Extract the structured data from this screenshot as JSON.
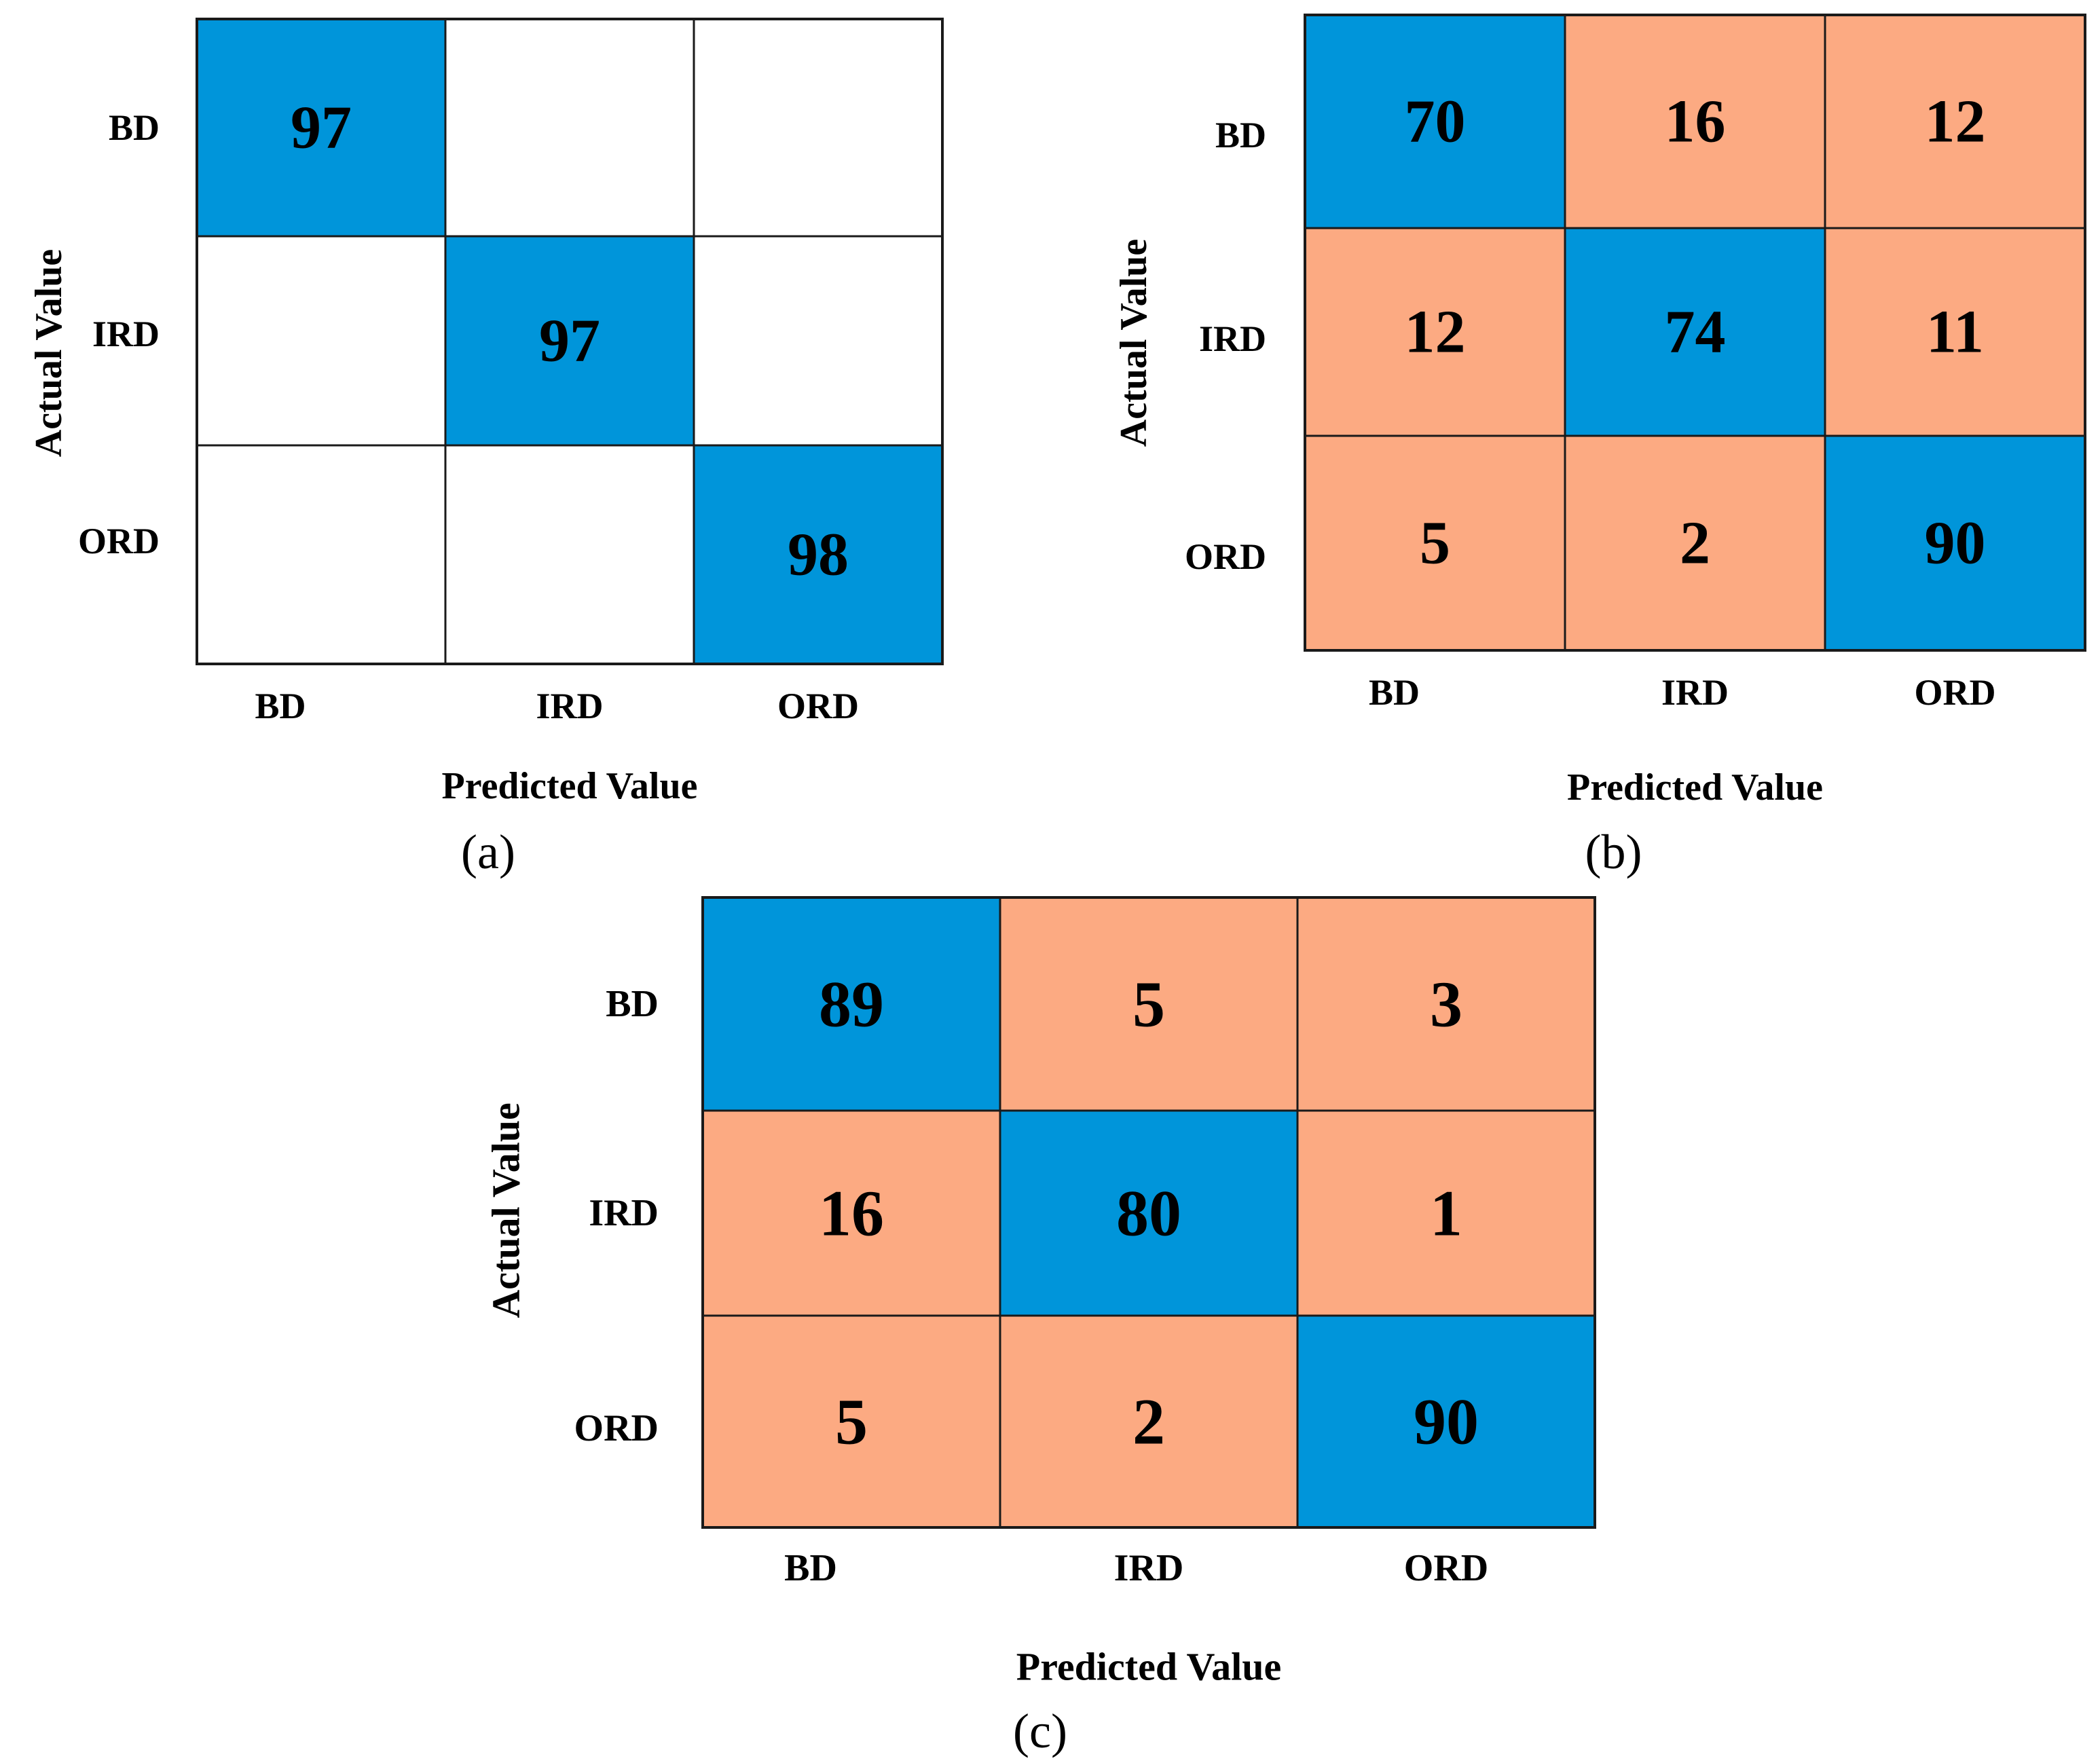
{
  "colors": {
    "correct": "#0095DA",
    "error": "#FCAA82",
    "empty": "#FFFFFF",
    "grid": "#1A1A1A"
  },
  "chart_data": [
    {
      "type": "heatmap",
      "panel_label": "(a)",
      "title": "",
      "xlabel": "Predicted Value",
      "ylabel": "Actual Value",
      "x_categories": [
        "BD",
        "IRD",
        "ORD"
      ],
      "y_categories": [
        "BD",
        "IRD",
        "ORD"
      ],
      "values": [
        [
          97,
          null,
          null
        ],
        [
          null,
          97,
          null
        ],
        [
          null,
          null,
          98
        ]
      ]
    },
    {
      "type": "heatmap",
      "panel_label": "(b)",
      "title": "",
      "xlabel": "Predicted Value",
      "ylabel": "Actual Value",
      "x_categories": [
        "BD",
        "IRD",
        "ORD"
      ],
      "y_categories": [
        "BD",
        "IRD",
        "ORD"
      ],
      "values": [
        [
          70,
          16,
          12
        ],
        [
          12,
          74,
          11
        ],
        [
          5,
          2,
          90
        ]
      ]
    },
    {
      "type": "heatmap",
      "panel_label": "(c)",
      "title": "",
      "xlabel": "Predicted Value",
      "ylabel": "Actual Value",
      "x_categories": [
        "BD",
        "IRD",
        "ORD"
      ],
      "y_categories": [
        "BD",
        "IRD",
        "ORD"
      ],
      "values": [
        [
          89,
          5,
          3
        ],
        [
          16,
          80,
          1
        ],
        [
          5,
          2,
          90
        ]
      ]
    }
  ]
}
